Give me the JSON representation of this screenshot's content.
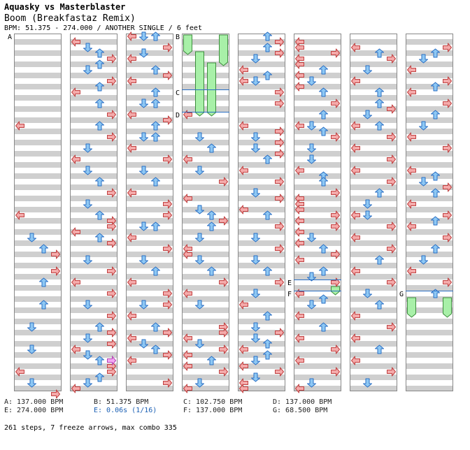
{
  "header": {
    "artist": "Aquasky vs Masterblaster",
    "title": "Boom (Breakfastaz Remix)",
    "bpm_line": "BPM: 51.375 - 274.000 / ANOTHER SINGLE / 6 feet"
  },
  "colors": {
    "left_arrow": "#f4aaaa",
    "down_arrow": "#8ec8f4",
    "up_arrow": "#8ec8f4",
    "right_arrow": "#f4aaaa",
    "freeze": "#a8f0a8",
    "stop_arrow": "#f4a8f4",
    "marker_line": "#2a6fc4",
    "band": "#cfcfcf"
  },
  "markers": [
    {
      "label": "A",
      "column": 0,
      "beat": 0
    },
    {
      "label": "B",
      "column": 3,
      "beat": 0
    },
    {
      "label": "C",
      "column": 3,
      "beat": 10
    },
    {
      "label": "D",
      "column": 3,
      "beat": 14
    },
    {
      "label": "E",
      "column": 5,
      "beat": 44
    },
    {
      "label": "F",
      "column": 5,
      "beat": 46
    },
    {
      "label": "G",
      "column": 7,
      "beat": 46
    }
  ],
  "legend": [
    {
      "text": "A: 137.000 BPM",
      "col": 0,
      "row": 0,
      "stop": false
    },
    {
      "text": "B: 51.375 BPM",
      "col": 1,
      "row": 0,
      "stop": false
    },
    {
      "text": "C: 102.750 BPM",
      "col": 2,
      "row": 0,
      "stop": false
    },
    {
      "text": "D: 137.000 BPM",
      "col": 3,
      "row": 0,
      "stop": false
    },
    {
      "text": "E: 274.000 BPM",
      "col": 0,
      "row": 1,
      "stop": false
    },
    {
      "text": "E: 0.06s (1/16)",
      "col": 1,
      "row": 1,
      "stop": true
    },
    {
      "text": "F: 137.000 BPM",
      "col": 2,
      "row": 1,
      "stop": false
    },
    {
      "text": "G: 68.500 BPM",
      "col": 3,
      "row": 1,
      "stop": false
    }
  ],
  "summary": "261 steps, 7 freeze arrows, max combo 335",
  "freezes": [
    {
      "column": 3,
      "lane": 0,
      "start": 0,
      "end": 3
    },
    {
      "column": 3,
      "lane": 3,
      "start": 0,
      "end": 5
    },
    {
      "column": 3,
      "lane": 1,
      "start": 3,
      "end": 14
    },
    {
      "column": 3,
      "lane": 2,
      "start": 5,
      "end": 14
    },
    {
      "column": 5,
      "lane": 3,
      "start": 45,
      "end": 46
    },
    {
      "column": 7,
      "lane": 0,
      "start": 47,
      "end": 50
    },
    {
      "column": 7,
      "lane": 3,
      "start": 47,
      "end": 50
    }
  ],
  "notes": [
    [
      [
        0,
        16
      ],
      [
        0,
        32
      ],
      [
        1,
        36
      ],
      [
        2,
        38
      ],
      [
        3,
        39
      ],
      [
        3,
        42
      ],
      [
        2,
        44
      ],
      [
        2,
        48
      ],
      [
        1,
        52
      ],
      [
        1,
        56
      ],
      [
        0,
        60
      ],
      [
        1,
        62
      ],
      [
        3,
        64
      ]
    ],
    [
      [
        0,
        1
      ],
      [
        1,
        2
      ],
      [
        2,
        3
      ],
      [
        3,
        4
      ],
      [
        2,
        5
      ],
      [
        1,
        6
      ],
      [
        3,
        8
      ],
      [
        2,
        9
      ],
      [
        0,
        10
      ],
      [
        2,
        12
      ],
      [
        3,
        14
      ],
      [
        2,
        16
      ],
      [
        3,
        18
      ],
      [
        1,
        20
      ],
      [
        0,
        22
      ],
      [
        1,
        24
      ],
      [
        2,
        26
      ],
      [
        3,
        28
      ],
      [
        1,
        30
      ],
      [
        2,
        32
      ],
      [
        3,
        33
      ],
      [
        3,
        34
      ],
      [
        0,
        35
      ],
      [
        2,
        36
      ],
      [
        3,
        37
      ],
      [
        1,
        40
      ],
      [
        3,
        42
      ],
      [
        0,
        44
      ],
      [
        3,
        46
      ],
      [
        1,
        48
      ],
      [
        3,
        50
      ],
      [
        2,
        52
      ],
      [
        3,
        53
      ],
      [
        1,
        54
      ],
      [
        3,
        55
      ],
      [
        0,
        56
      ],
      [
        1,
        57
      ],
      [
        2,
        58
      ],
      [
        3,
        59
      ],
      [
        3,
        60
      ],
      [
        2,
        61
      ],
      [
        1,
        62
      ],
      [
        0,
        63
      ]
    ],
    [
      [
        0,
        0
      ],
      [
        1,
        0
      ],
      [
        2,
        0
      ],
      [
        3,
        2
      ],
      [
        1,
        3
      ],
      [
        0,
        4
      ],
      [
        2,
        6
      ],
      [
        3,
        7
      ],
      [
        0,
        8
      ],
      [
        2,
        10
      ],
      [
        1,
        12
      ],
      [
        2,
        12
      ],
      [
        0,
        14
      ],
      [
        3,
        15
      ],
      [
        2,
        16
      ],
      [
        1,
        18
      ],
      [
        2,
        18
      ],
      [
        0,
        20
      ],
      [
        3,
        22
      ],
      [
        1,
        24
      ],
      [
        2,
        26
      ],
      [
        0,
        28
      ],
      [
        3,
        30
      ],
      [
        3,
        32
      ],
      [
        1,
        34
      ],
      [
        2,
        34
      ],
      [
        0,
        36
      ],
      [
        3,
        38
      ],
      [
        1,
        40
      ],
      [
        2,
        42
      ],
      [
        0,
        44
      ],
      [
        3,
        46
      ],
      [
        1,
        48
      ],
      [
        3,
        48
      ],
      [
        0,
        50
      ],
      [
        2,
        52
      ],
      [
        3,
        53
      ],
      [
        0,
        54
      ],
      [
        1,
        55
      ],
      [
        2,
        56
      ],
      [
        3,
        57
      ],
      [
        0,
        58
      ],
      [
        3,
        62
      ]
    ],
    [
      [
        0,
        14
      ],
      [
        1,
        18
      ],
      [
        2,
        20
      ],
      [
        0,
        22
      ],
      [
        1,
        24
      ],
      [
        3,
        26
      ],
      [
        0,
        29
      ],
      [
        1,
        31
      ],
      [
        2,
        32
      ],
      [
        3,
        33
      ],
      [
        2,
        34
      ],
      [
        1,
        36
      ],
      [
        0,
        38
      ],
      [
        0,
        39
      ],
      [
        1,
        40
      ],
      [
        2,
        42
      ],
      [
        3,
        44
      ],
      [
        0,
        46
      ],
      [
        1,
        48
      ],
      [
        3,
        52
      ],
      [
        3,
        53
      ],
      [
        0,
        54
      ],
      [
        1,
        55
      ],
      [
        3,
        56
      ],
      [
        0,
        57
      ],
      [
        2,
        58
      ],
      [
        0,
        59
      ],
      [
        3,
        60
      ],
      [
        1,
        62
      ],
      [
        0,
        63
      ]
    ],
    [
      [
        2,
        0
      ],
      [
        3,
        1
      ],
      [
        2,
        2
      ],
      [
        3,
        3
      ],
      [
        1,
        4
      ],
      [
        0,
        6
      ],
      [
        2,
        7
      ],
      [
        0,
        8
      ],
      [
        1,
        8
      ],
      [
        3,
        10
      ],
      [
        3,
        12
      ],
      [
        0,
        16
      ],
      [
        3,
        17
      ],
      [
        1,
        18
      ],
      [
        3,
        19
      ],
      [
        1,
        20
      ],
      [
        3,
        21
      ],
      [
        2,
        22
      ],
      [
        0,
        24
      ],
      [
        3,
        26
      ],
      [
        1,
        28
      ],
      [
        3,
        29
      ],
      [
        0,
        31
      ],
      [
        2,
        32
      ],
      [
        3,
        34
      ],
      [
        1,
        36
      ],
      [
        3,
        38
      ],
      [
        1,
        40
      ],
      [
        2,
        42
      ],
      [
        3,
        44
      ],
      [
        1,
        46
      ],
      [
        0,
        48
      ],
      [
        2,
        50
      ],
      [
        1,
        52
      ],
      [
        3,
        53
      ],
      [
        1,
        54
      ],
      [
        2,
        55
      ],
      [
        0,
        56
      ],
      [
        2,
        57
      ],
      [
        1,
        58
      ],
      [
        0,
        59
      ],
      [
        3,
        60
      ],
      [
        1,
        61
      ],
      [
        0,
        62
      ],
      [
        0,
        63
      ]
    ],
    [
      [
        0,
        1
      ],
      [
        0,
        2
      ],
      [
        3,
        3
      ],
      [
        0,
        4
      ],
      [
        0,
        5
      ],
      [
        2,
        6
      ],
      [
        0,
        7
      ],
      [
        1,
        8
      ],
      [
        0,
        9
      ],
      [
        2,
        10
      ],
      [
        3,
        12
      ],
      [
        2,
        14
      ],
      [
        0,
        16
      ],
      [
        1,
        16
      ],
      [
        2,
        17
      ],
      [
        3,
        18
      ],
      [
        1,
        20
      ],
      [
        1,
        22
      ],
      [
        0,
        24
      ],
      [
        2,
        25
      ],
      [
        2,
        26
      ],
      [
        3,
        28
      ],
      [
        0,
        29
      ],
      [
        0,
        30
      ],
      [
        0,
        31
      ],
      [
        3,
        32
      ],
      [
        0,
        33
      ],
      [
        3,
        34
      ],
      [
        0,
        35
      ],
      [
        1,
        36
      ],
      [
        0,
        37
      ],
      [
        2,
        38
      ],
      [
        3,
        39
      ],
      [
        0,
        40
      ],
      [
        2,
        42
      ],
      [
        1,
        43
      ],
      [
        3,
        44
      ],
      [
        0,
        46
      ],
      [
        2,
        47
      ],
      [
        1,
        48
      ],
      [
        0,
        50
      ],
      [
        2,
        52
      ],
      [
        0,
        54
      ],
      [
        3,
        56
      ],
      [
        0,
        58
      ],
      [
        3,
        60
      ],
      [
        1,
        62
      ],
      [
        0,
        63
      ]
    ],
    [
      [
        0,
        2
      ],
      [
        2,
        3
      ],
      [
        3,
        4
      ],
      [
        1,
        6
      ],
      [
        0,
        8
      ],
      [
        2,
        10
      ],
      [
        2,
        12
      ],
      [
        3,
        13
      ],
      [
        1,
        14
      ],
      [
        0,
        16
      ],
      [
        2,
        16
      ],
      [
        3,
        18
      ],
      [
        0,
        20
      ],
      [
        3,
        22
      ],
      [
        0,
        24
      ],
      [
        3,
        26
      ],
      [
        2,
        28
      ],
      [
        1,
        30
      ],
      [
        0,
        32
      ],
      [
        1,
        32
      ],
      [
        3,
        34
      ],
      [
        0,
        36
      ],
      [
        3,
        38
      ],
      [
        2,
        40
      ],
      [
        0,
        42
      ],
      [
        3,
        44
      ],
      [
        1,
        46
      ],
      [
        2,
        48
      ],
      [
        0,
        50
      ],
      [
        3,
        52
      ],
      [
        0,
        54
      ],
      [
        2,
        56
      ],
      [
        0,
        58
      ],
      [
        3,
        60
      ],
      [
        1,
        62
      ]
    ],
    [
      [
        3,
        2
      ],
      [
        2,
        3
      ],
      [
        1,
        4
      ],
      [
        0,
        6
      ],
      [
        3,
        8
      ],
      [
        2,
        9
      ],
      [
        0,
        10
      ],
      [
        3,
        12
      ],
      [
        2,
        14
      ],
      [
        1,
        16
      ],
      [
        0,
        18
      ],
      [
        3,
        20
      ],
      [
        0,
        24
      ],
      [
        2,
        25
      ],
      [
        1,
        26
      ],
      [
        3,
        27
      ],
      [
        2,
        28
      ],
      [
        0,
        30
      ],
      [
        3,
        32
      ],
      [
        2,
        33
      ],
      [
        0,
        34
      ],
      [
        3,
        36
      ],
      [
        2,
        38
      ],
      [
        1,
        40
      ],
      [
        0,
        42
      ],
      [
        3,
        44
      ],
      [
        2,
        46
      ]
    ]
  ],
  "stop_notes": [
    [
      1,
      3,
      58
    ]
  ]
}
